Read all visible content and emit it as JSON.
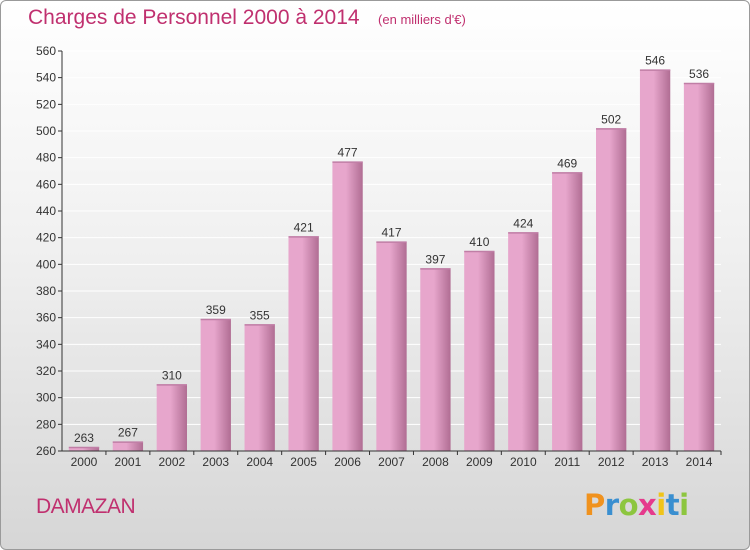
{
  "header": {
    "title": "Charges de Personnel 2000 à 2014",
    "unit": "(en milliers d'€)"
  },
  "footer": {
    "town": "DAMAZAN",
    "logo": {
      "letters": [
        "P",
        "r",
        "o",
        "x",
        "i",
        "t",
        "i"
      ],
      "colors": [
        "#f0921e",
        "#3a8fd0",
        "#8dc63f",
        "#e53a8c",
        "#f0c419",
        "#3a8fd0",
        "#8dc63f"
      ]
    }
  },
  "colors": {
    "bar_light": "#e7a6cc",
    "bar_dark": "#b06d93",
    "bar_top": "#c07ea6",
    "grid": "#ffffff",
    "axis": "#333333",
    "accent": "#c0306f"
  },
  "chart_data": {
    "type": "bar",
    "categories": [
      "2000",
      "2001",
      "2002",
      "2003",
      "2004",
      "2005",
      "2006",
      "2007",
      "2008",
      "2009",
      "2010",
      "2011",
      "2012",
      "2013",
      "2014"
    ],
    "values": [
      263,
      267,
      310,
      359,
      355,
      421,
      477,
      417,
      397,
      410,
      424,
      469,
      502,
      546,
      536
    ],
    "ylim": [
      260,
      560
    ],
    "yticks": [
      260,
      280,
      300,
      320,
      340,
      360,
      380,
      400,
      420,
      440,
      460,
      480,
      500,
      520,
      540,
      560
    ],
    "grid": true,
    "xlabel": "",
    "ylabel": ""
  }
}
